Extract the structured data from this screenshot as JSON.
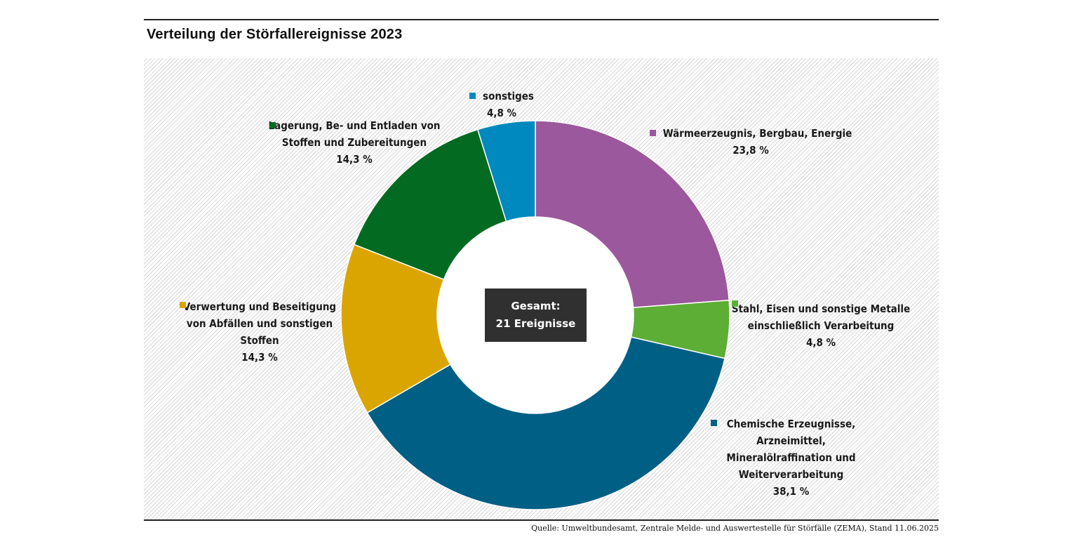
{
  "chart_data": {
    "type": "pie",
    "variant": "donut",
    "title": "Verteilung der Störfallereignisse 2023",
    "center_label": {
      "line1": "Gesamt:",
      "line2": "21 Ereignisse"
    },
    "categories": [
      "Wärmeerzeugnis, Bergbau, Energie",
      "Stahl, Eisen und sonstige Metalle einschließlich Verarbeitung",
      "Chemische Erzeugnisse, Arzneimittel, Mineralölraffination und Weiterverarbeitung",
      "Verwertung und Beseitigung von Abfällen und sonstigen Stoffen",
      "Lagerung, Be- und Entladen von Stoffen und Zubereitungen",
      "sonstiges"
    ],
    "values": [
      23.8,
      4.8,
      38.1,
      14.3,
      14.3,
      4.8
    ],
    "value_labels": [
      "23,8 %",
      "4,8 %",
      "38,1 %",
      "14,3 %",
      "14,3 %",
      "4,8 %"
    ],
    "colors": [
      "#9c589c",
      "#5dae35",
      "#005f85",
      "#dba500",
      "#036a22",
      "#0089be"
    ],
    "source": "Quelle: Umweltbundesamt, Zentrale Melde- und Auswertestelle für Störfälle (ZEMA), Stand 11.06.2025"
  }
}
